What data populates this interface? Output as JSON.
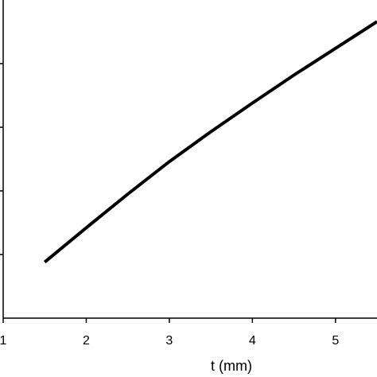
{
  "chart_data": {
    "type": "line",
    "xlabel": "t (mm)",
    "ylabel": "",
    "title": "",
    "xlim": [
      1,
      5.5
    ],
    "ylim": [
      0,
      5
    ],
    "x_ticks": [
      1,
      2,
      3,
      4,
      5
    ],
    "y_ticks": [
      1,
      2,
      3,
      4
    ],
    "grid": false,
    "series": [
      {
        "x": [
          1.5,
          2.0,
          2.5,
          3.0,
          3.5,
          4.0,
          4.5,
          5.0,
          5.5
        ],
        "y": [
          0.88,
          1.42,
          1.95,
          2.46,
          2.93,
          3.38,
          3.82,
          4.24,
          4.66
        ],
        "color": "#000000"
      }
    ]
  }
}
